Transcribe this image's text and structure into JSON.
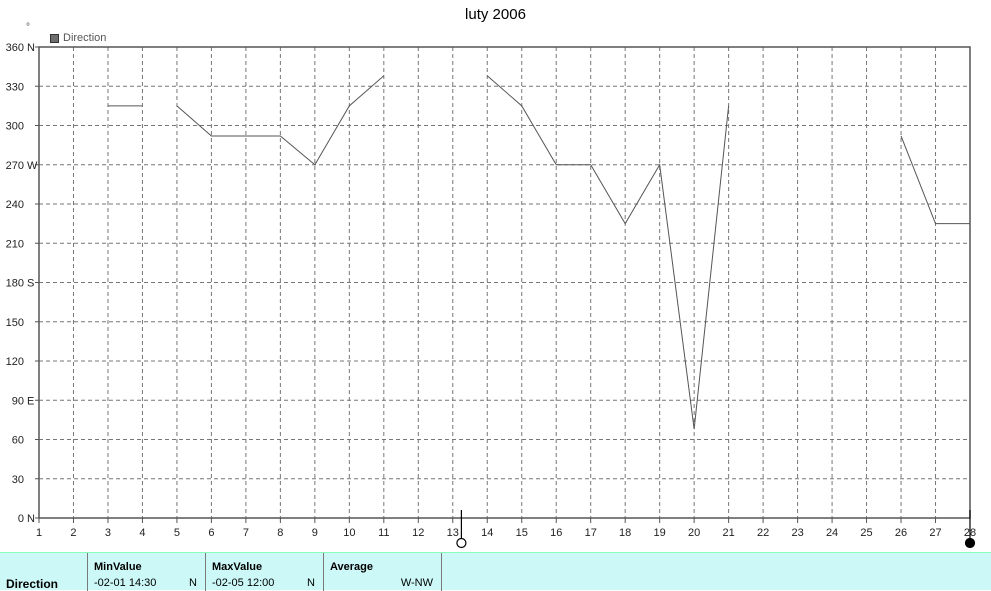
{
  "chart_data": {
    "type": "line",
    "title": "luty 2006",
    "unit_mark": "°",
    "legend": {
      "label": "Direction",
      "placement": "top-left",
      "color": "#6e6e6e"
    },
    "x_ticks": [
      "1",
      "2",
      "3",
      "4",
      "5",
      "6",
      "7",
      "8",
      "9",
      "10",
      "11",
      "12",
      "13",
      "14",
      "15",
      "16",
      "17",
      "18",
      "19",
      "20",
      "21",
      "22",
      "23",
      "24",
      "25",
      "26",
      "27",
      "28"
    ],
    "xlim": [
      1,
      28
    ],
    "y_ticks": [
      {
        "value": 0,
        "label": "0",
        "compass": "N"
      },
      {
        "value": 30,
        "label": "30",
        "compass": ""
      },
      {
        "value": 60,
        "label": "60",
        "compass": ""
      },
      {
        "value": 90,
        "label": "90",
        "compass": "E"
      },
      {
        "value": 120,
        "label": "120",
        "compass": ""
      },
      {
        "value": 150,
        "label": "150",
        "compass": ""
      },
      {
        "value": 180,
        "label": "180",
        "compass": "S"
      },
      {
        "value": 210,
        "label": "210",
        "compass": ""
      },
      {
        "value": 240,
        "label": "240",
        "compass": ""
      },
      {
        "value": 270,
        "label": "270",
        "compass": "W"
      },
      {
        "value": 300,
        "label": "300",
        "compass": ""
      },
      {
        "value": 330,
        "label": "330",
        "compass": ""
      },
      {
        "value": 360,
        "label": "360",
        "compass": "N"
      }
    ],
    "ylim": [
      0,
      360
    ],
    "grid": true,
    "series": [
      {
        "name": "Direction",
        "color": "#555555",
        "segments": [
          [
            [
              3,
              315
            ],
            [
              4,
              315
            ]
          ],
          [
            [
              5,
              315
            ],
            [
              6,
              292
            ],
            [
              7,
              292
            ],
            [
              8,
              292
            ],
            [
              9,
              270
            ],
            [
              10,
              315
            ],
            [
              11,
              338
            ]
          ],
          [
            [
              14,
              338
            ],
            [
              15,
              315
            ],
            [
              16,
              270
            ],
            [
              17,
              270
            ],
            [
              18,
              225
            ],
            [
              19,
              270
            ],
            [
              20,
              68
            ],
            [
              21,
              315
            ]
          ],
          [
            [
              26,
              292
            ],
            [
              27,
              225
            ],
            [
              28,
              225
            ]
          ]
        ]
      }
    ],
    "markers": [
      {
        "x": 13.25,
        "style": "open-circle"
      },
      {
        "x": 28,
        "style": "filled-circle"
      }
    ]
  },
  "stats": {
    "row_label": "Direction",
    "min": {
      "header": "MinValue",
      "date": "-02-01  14:30",
      "dir": "N"
    },
    "max": {
      "header": "MaxValue",
      "date": "-02-05  12:00",
      "dir": "N"
    },
    "avg": {
      "header": "Average",
      "dir": "W-NW"
    }
  }
}
